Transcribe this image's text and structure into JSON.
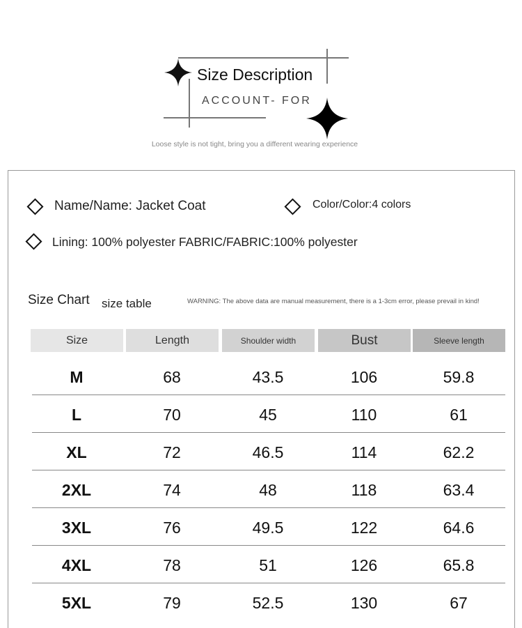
{
  "header": {
    "title": "Size Description",
    "subtitle": "ACCOUNT- FOR",
    "tagline": "Loose style is not tight, bring you a different wearing experience"
  },
  "info": {
    "name": "Name/Name: Jacket Coat",
    "color": "Color/Color:4 colors",
    "fabric": "Lining: 100% polyester FABRIC/FABRIC:100% polyester"
  },
  "chart_heading": {
    "title": "Size Chart",
    "subtitle": "size table",
    "warning": "WARNING: The above data are manual measurement, there is a 1-3cm error, please prevail in kind!"
  },
  "columns": [
    {
      "label": "Size",
      "bg": "#e6e6e6"
    },
    {
      "label": "Length",
      "bg": "#dedede"
    },
    {
      "label": "Shoulder width",
      "bg": "#d2d2d2"
    },
    {
      "label": "Bust",
      "bg": "#c6c6c6"
    },
    {
      "label": "Sleeve length",
      "bg": "#b6b6b6"
    }
  ],
  "rows": [
    [
      "M",
      "68",
      "43.5",
      "106",
      "59.8"
    ],
    [
      "L",
      "70",
      "45",
      "110",
      "61"
    ],
    [
      "XL",
      "72",
      "46.5",
      "114",
      "62.2"
    ],
    [
      "2XL",
      "74",
      "48",
      "118",
      "63.4"
    ],
    [
      "3XL",
      "76",
      "49.5",
      "122",
      "64.6"
    ],
    [
      "4XL",
      "78",
      "51",
      "126",
      "65.8"
    ],
    [
      "5XL",
      "79",
      "52.5",
      "130",
      "67"
    ]
  ]
}
